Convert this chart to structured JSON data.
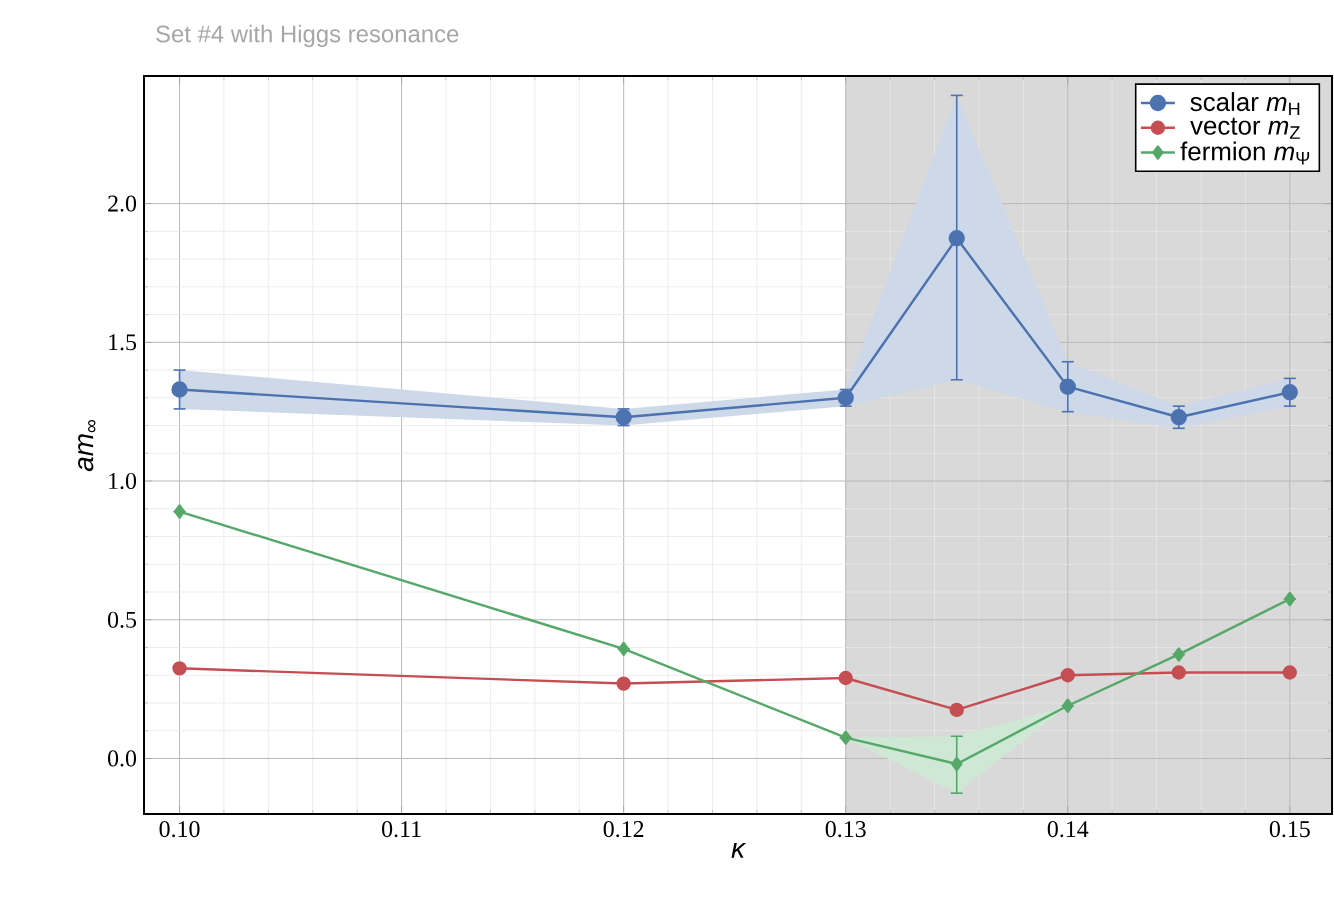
{
  "chart_data": {
    "type": "line",
    "title": "Set #4 with Higgs resonance",
    "xlabel": "κ",
    "ylabel": "*am*$_{∞}$",
    "x": [
      0.1,
      0.12,
      0.13,
      0.135,
      0.14,
      0.145,
      0.15
    ],
    "series": [
      {
        "name": "scalar *m*$_{H}$",
        "color": "#4c72b0",
        "marker": "circle",
        "values": [
          1.33,
          1.23,
          1.3,
          1.875,
          1.34,
          1.23,
          1.32
        ],
        "errors": [
          [
            1.26,
            1.4
          ],
          [
            1.2,
            1.26
          ],
          [
            1.27,
            1.33
          ],
          [
            1.365,
            2.39
          ],
          [
            1.25,
            1.43
          ],
          [
            1.19,
            1.27
          ],
          [
            1.27,
            1.37
          ]
        ],
        "lower": [
          1.26,
          1.2,
          1.27,
          1.365,
          1.25,
          1.19,
          1.27
        ],
        "upper": [
          1.4,
          1.26,
          1.33,
          2.39,
          1.43,
          1.27,
          1.37
        ]
      },
      {
        "name": "vector *m*$_{Z}$",
        "color": "#c44e52",
        "marker": "circle",
        "values": [
          0.325,
          0.27,
          0.29,
          0.175,
          0.3,
          0.31,
          0.31
        ]
      },
      {
        "name": "fermion *m*$_{Ψ}$",
        "color": "#55a868",
        "marker": "diamond",
        "values": [
          0.89,
          0.395,
          0.075,
          -0.02,
          0.19,
          0.375,
          0.575
        ],
        "errors": [
          null,
          null,
          null,
          [
            -0.125,
            0.08
          ],
          null,
          null,
          null
        ],
        "lower": [
          null,
          null,
          0.075,
          -0.125,
          0.19,
          null,
          null
        ],
        "upper": [
          null,
          null,
          0.075,
          0.08,
          0.19,
          null,
          null
        ]
      }
    ],
    "bands": [
      {
        "axis": "x",
        "from": 0.13,
        "to": 0.1519,
        "color": "#d9d9d9"
      }
    ],
    "xlim": [
      0.0984,
      0.1519
    ],
    "ylim": [
      -0.2,
      2.46
    ],
    "xticks": [
      {
        "value": 0.1,
        "label": "0.10"
      },
      {
        "value": 0.11,
        "label": "0.11"
      },
      {
        "value": 0.12,
        "label": "0.12"
      },
      {
        "value": 0.13,
        "label": "0.13"
      },
      {
        "value": 0.14,
        "label": "0.14"
      },
      {
        "value": 0.15,
        "label": "0.15"
      }
    ],
    "yticks": [
      {
        "value": 0,
        "label": "0.0"
      },
      {
        "value": 0.5,
        "label": "0.5"
      },
      {
        "value": 1.0,
        "label": "1.0"
      },
      {
        "value": 1.5,
        "label": "1.5"
      },
      {
        "value": 2.0,
        "label": "2.0"
      }
    ],
    "grid": true,
    "legend": "top right",
    "line_style": "solid"
  }
}
